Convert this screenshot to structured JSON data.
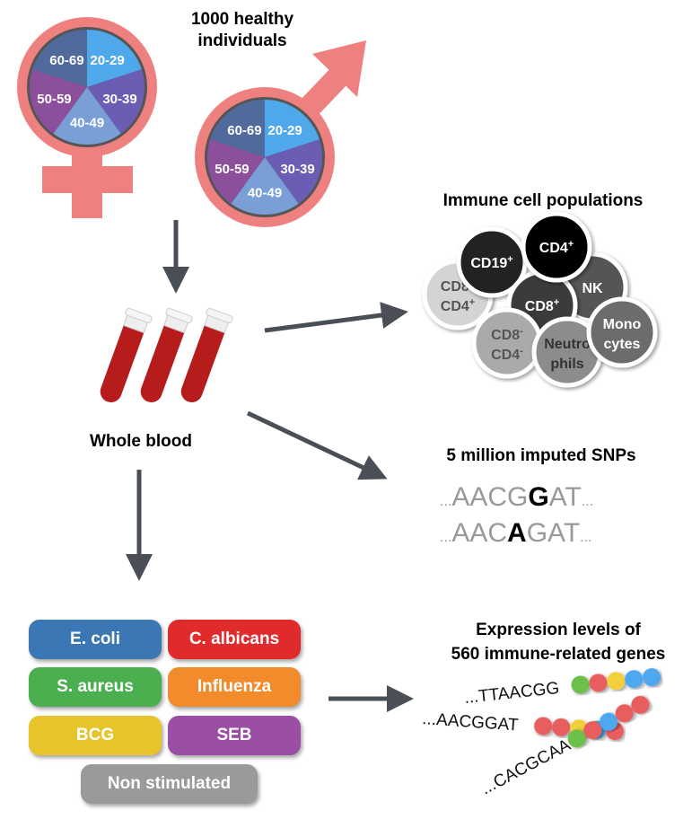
{
  "cohort": {
    "title_line1": "1000 healthy individuals",
    "title_line2": "",
    "age_groups": [
      "20-29",
      "30-39",
      "40-49",
      "50-59",
      "60-69"
    ],
    "age_colors": [
      "#4ea8ea",
      "#6a5db3",
      "#7a9fd6",
      "#8c4f9c",
      "#506b9b"
    ],
    "symbol_color": "#ef8080"
  },
  "blood": {
    "label": "Whole blood"
  },
  "cells": {
    "title": "Immune cell populations",
    "populations": [
      {
        "l1": "CD19",
        "s1": "+",
        "l2": "",
        "s2": "",
        "color": "#222222",
        "text": "#ffffff"
      },
      {
        "l1": "CD4",
        "s1": "+",
        "l2": "",
        "s2": "",
        "color": "#000000",
        "text": "#ffffff"
      },
      {
        "l1": "NK",
        "s1": "",
        "l2": "",
        "s2": "",
        "color": "#555555",
        "text": "#ffffff"
      },
      {
        "l1": "CD8",
        "s1": "+",
        "l2": "",
        "s2": "",
        "color": "#3a3a3a",
        "text": "#ffffff"
      },
      {
        "l1": "CD8",
        "s1": "+",
        "l2": "CD4",
        "s2": "+",
        "color": "#d4d4d4",
        "text": "#555555"
      },
      {
        "l1": "CD8",
        "s1": "-",
        "l2": "CD4",
        "s2": "-",
        "color": "#aaaaaa",
        "text": "#555555"
      },
      {
        "l1": "Neutro",
        "s1": "",
        "l2": "phils",
        "s2": "",
        "color": "#8c8c8c",
        "text": "#333333"
      },
      {
        "l1": "Mono",
        "s1": "",
        "l2": "cytes",
        "s2": "",
        "color": "#6c6c6c",
        "text": "#ffffff"
      }
    ]
  },
  "snps": {
    "title": "5 million imputed SNPs",
    "seq1": {
      "pre": "AACG",
      "mid": "G",
      "post": "AT"
    },
    "seq2": {
      "pre": "AAC",
      "mid": "A",
      "post": "GAT"
    },
    "dots": "..."
  },
  "expression": {
    "title_line1": "Expression levels of",
    "title_line2": "560 immune-related genes",
    "seqs": [
      "...TTAACGG",
      "...AACGGAT",
      "...CACGCAA"
    ],
    "beads": [
      [
        "#6cbf4a",
        "#e85d5d",
        "#f2cf3c",
        "#4ea8f0",
        "#4ea8f0"
      ],
      [
        "#e85d5d",
        "#e85d5d",
        "#f2cf3c",
        "#4ea8f0",
        "#e85d5d"
      ],
      [
        "#6cbf4a",
        "#e85d5d",
        "#4ea8f0",
        "#e85d5d",
        "#e85d5d"
      ]
    ]
  },
  "stimuli": [
    {
      "label": "E. coli",
      "color": "#3a77b4"
    },
    {
      "label": "C. albicans",
      "color": "#e12a2c"
    },
    {
      "label": "S. aureus",
      "color": "#4caf4f"
    },
    {
      "label": "Influenza",
      "color": "#f28b2b"
    },
    {
      "label": "BCG",
      "color": "#e8c42c"
    },
    {
      "label": "SEB",
      "color": "#9a4ea4"
    },
    {
      "label": "Non stimulated",
      "color": "#9a9a9a"
    }
  ]
}
